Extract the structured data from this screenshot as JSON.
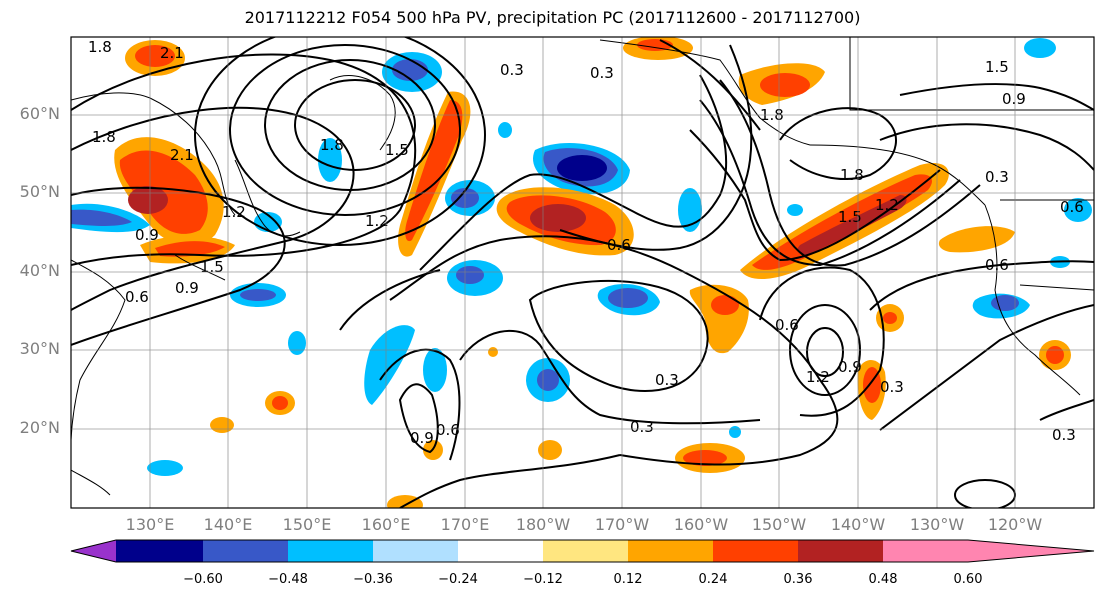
{
  "title": "2017112212 F054 500 hPa PV, precipitation PC (2017112600 - 2017112700)",
  "map": {
    "projection": "cylindrical",
    "lon_range_east_degrees": [
      120,
      250
    ],
    "lat_range": [
      10,
      70
    ],
    "grid": true,
    "lat_ticks": [
      "60°N",
      "50°N",
      "40°N",
      "30°N",
      "20°N"
    ],
    "lon_ticks": [
      "130°E",
      "140°E",
      "150°E",
      "160°E",
      "170°E",
      "180°W",
      "170°W",
      "160°W",
      "150°W",
      "140°W",
      "130°W",
      "120°W"
    ],
    "contour_labels": [
      "1.8",
      "2.1",
      "1.8",
      "2.1",
      "0.3",
      "0.3",
      "1.5",
      "0.9",
      "1.8",
      "1.5",
      "1.8",
      "1.2",
      "0.9",
      "1.2",
      "0.9",
      "1.5",
      "0.6",
      "0.6",
      "1.5",
      "1.2",
      "1.8",
      "0.3",
      "0.6",
      "0.6",
      "0.6",
      "0.3",
      "0.9",
      "1.2",
      "0.3",
      "0.9",
      "0.6",
      "0.3",
      "0.3"
    ]
  },
  "colorbar": {
    "ticks": [
      "−0.60",
      "−0.48",
      "−0.36",
      "−0.24",
      "−0.12",
      "0.12",
      "0.24",
      "0.36",
      "0.48",
      "0.60"
    ],
    "colors": [
      "#9932cc",
      "#00008b",
      "#3858c8",
      "#00bfff",
      "#b0e0ff",
      "#ffffff",
      "#ffe680",
      "#ffa500",
      "#ff4000",
      "#b22222",
      "#ff85b0"
    ],
    "extend": "both"
  }
}
